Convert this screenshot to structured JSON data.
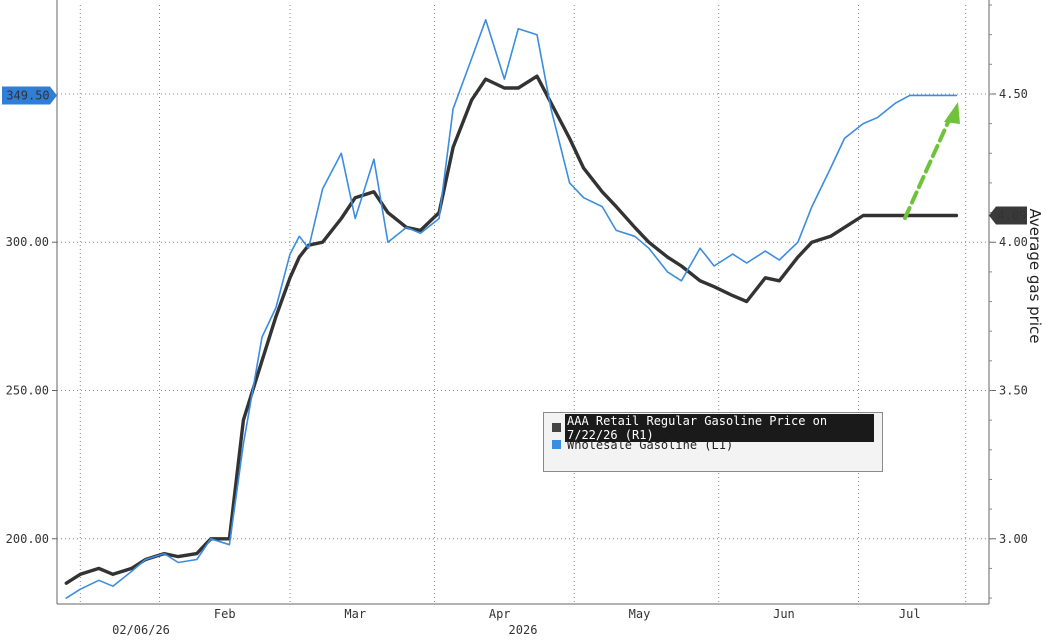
{
  "chart_data": {
    "type": "line",
    "title": "",
    "left_axis": {
      "range": [
        178,
        380
      ],
      "ticks": [
        200,
        250,
        300
      ],
      "tick_labels": [
        "200.00",
        "250.00",
        "300.00"
      ]
    },
    "right_axis": {
      "range": [
        2.78,
        4.8
      ],
      "ticks": [
        3.0,
        3.5,
        4.0,
        4.5
      ],
      "tick_labels": [
        "3.00",
        "3.50",
        "4.00",
        "4.50"
      ],
      "label": "Average gas price"
    },
    "x_axis": {
      "month_labels": [
        "Feb",
        "Mar",
        "Apr",
        "May",
        "Jun",
        "Jul"
      ],
      "year_label": "2026",
      "cursor_date": "02/06/26"
    },
    "grid": true,
    "legend": "bottom-right",
    "current_value_tags": {
      "wholesale": "349.50",
      "retail": "4.09"
    },
    "series": [
      {
        "name": "AAA Retail Regular Gasoline Price on 7/22/26 (R1)",
        "axis": "right",
        "color": "#333333",
        "dates": [
          "2026-01-12",
          "2026-01-15",
          "2026-01-19",
          "2026-01-22",
          "2026-01-26",
          "2026-01-29",
          "2026-02-02",
          "2026-02-05",
          "2026-02-09",
          "2026-02-12",
          "2026-02-16",
          "2026-02-19",
          "2026-02-23",
          "2026-02-26",
          "2026-03-01",
          "2026-03-03",
          "2026-03-05",
          "2026-03-08",
          "2026-03-12",
          "2026-03-15",
          "2026-03-19",
          "2026-03-22",
          "2026-03-26",
          "2026-03-29",
          "2026-04-02",
          "2026-04-05",
          "2026-04-09",
          "2026-04-12",
          "2026-04-16",
          "2026-04-19",
          "2026-04-23",
          "2026-04-26",
          "2026-04-30",
          "2026-05-03",
          "2026-05-07",
          "2026-05-10",
          "2026-05-14",
          "2026-05-17",
          "2026-05-21",
          "2026-05-24",
          "2026-05-28",
          "2026-05-31",
          "2026-06-04",
          "2026-06-07",
          "2026-06-11",
          "2026-06-14",
          "2026-06-18",
          "2026-06-21",
          "2026-06-25",
          "2026-06-28",
          "2026-07-02",
          "2026-07-05",
          "2026-07-09",
          "2026-07-12",
          "2026-07-16",
          "2026-07-19",
          "2026-07-22"
        ],
        "values": [
          2.85,
          2.88,
          2.9,
          2.88,
          2.9,
          2.93,
          2.95,
          2.94,
          2.95,
          3.0,
          3.0,
          3.4,
          3.6,
          3.75,
          3.88,
          3.95,
          3.99,
          4.0,
          4.08,
          4.15,
          4.17,
          4.1,
          4.05,
          4.04,
          4.1,
          4.32,
          4.48,
          4.55,
          4.52,
          4.52,
          4.56,
          4.47,
          4.35,
          4.25,
          4.17,
          4.12,
          4.05,
          4.0,
          3.95,
          3.92,
          3.87,
          3.85,
          3.82,
          3.8,
          3.88,
          3.87,
          3.95,
          4.0,
          4.02,
          4.05,
          4.09,
          4.09,
          4.09,
          4.09,
          4.09,
          4.09,
          4.09
        ]
      },
      {
        "name": "Wholesale Gasoline (L1)",
        "axis": "left",
        "color": "#3b8de0",
        "dates": [
          "2026-01-12",
          "2026-01-15",
          "2026-01-19",
          "2026-01-22",
          "2026-01-26",
          "2026-01-29",
          "2026-02-02",
          "2026-02-05",
          "2026-02-09",
          "2026-02-12",
          "2026-02-16",
          "2026-02-19",
          "2026-02-23",
          "2026-02-26",
          "2026-03-01",
          "2026-03-03",
          "2026-03-05",
          "2026-03-08",
          "2026-03-12",
          "2026-03-15",
          "2026-03-19",
          "2026-03-22",
          "2026-03-26",
          "2026-03-29",
          "2026-04-02",
          "2026-04-05",
          "2026-04-09",
          "2026-04-12",
          "2026-04-16",
          "2026-04-19",
          "2026-04-23",
          "2026-04-26",
          "2026-04-30",
          "2026-05-03",
          "2026-05-07",
          "2026-05-10",
          "2026-05-14",
          "2026-05-17",
          "2026-05-21",
          "2026-05-24",
          "2026-05-28",
          "2026-05-31",
          "2026-06-04",
          "2026-06-07",
          "2026-06-11",
          "2026-06-14",
          "2026-06-18",
          "2026-06-21",
          "2026-06-25",
          "2026-06-28",
          "2026-07-02",
          "2026-07-05",
          "2026-07-09",
          "2026-07-12",
          "2026-07-16",
          "2026-07-19",
          "2026-07-22"
        ],
        "values": [
          180,
          183,
          186,
          184,
          189,
          193,
          195,
          192,
          193,
          200,
          198,
          232,
          268,
          278,
          296,
          302,
          298,
          318,
          330,
          308,
          328,
          300,
          305,
          303,
          308,
          345,
          362,
          375,
          355,
          372,
          370,
          345,
          320,
          315,
          312,
          304,
          302,
          298,
          290,
          287,
          298,
          292,
          296,
          293,
          297,
          294,
          300,
          312,
          325,
          335,
          340,
          342,
          347,
          349.5,
          349.5,
          349.5,
          349.5
        ]
      }
    ]
  },
  "ui": {
    "legend_retail": "AAA Retail Regular Gasoline Price on 7/22/26 (R1)",
    "legend_wholesale": "Wholesale Gasoline (L1)",
    "legend_retail_color": "#444444",
    "legend_wholesale_color": "#3b8de0",
    "arrow_color": "#6fc23a"
  }
}
